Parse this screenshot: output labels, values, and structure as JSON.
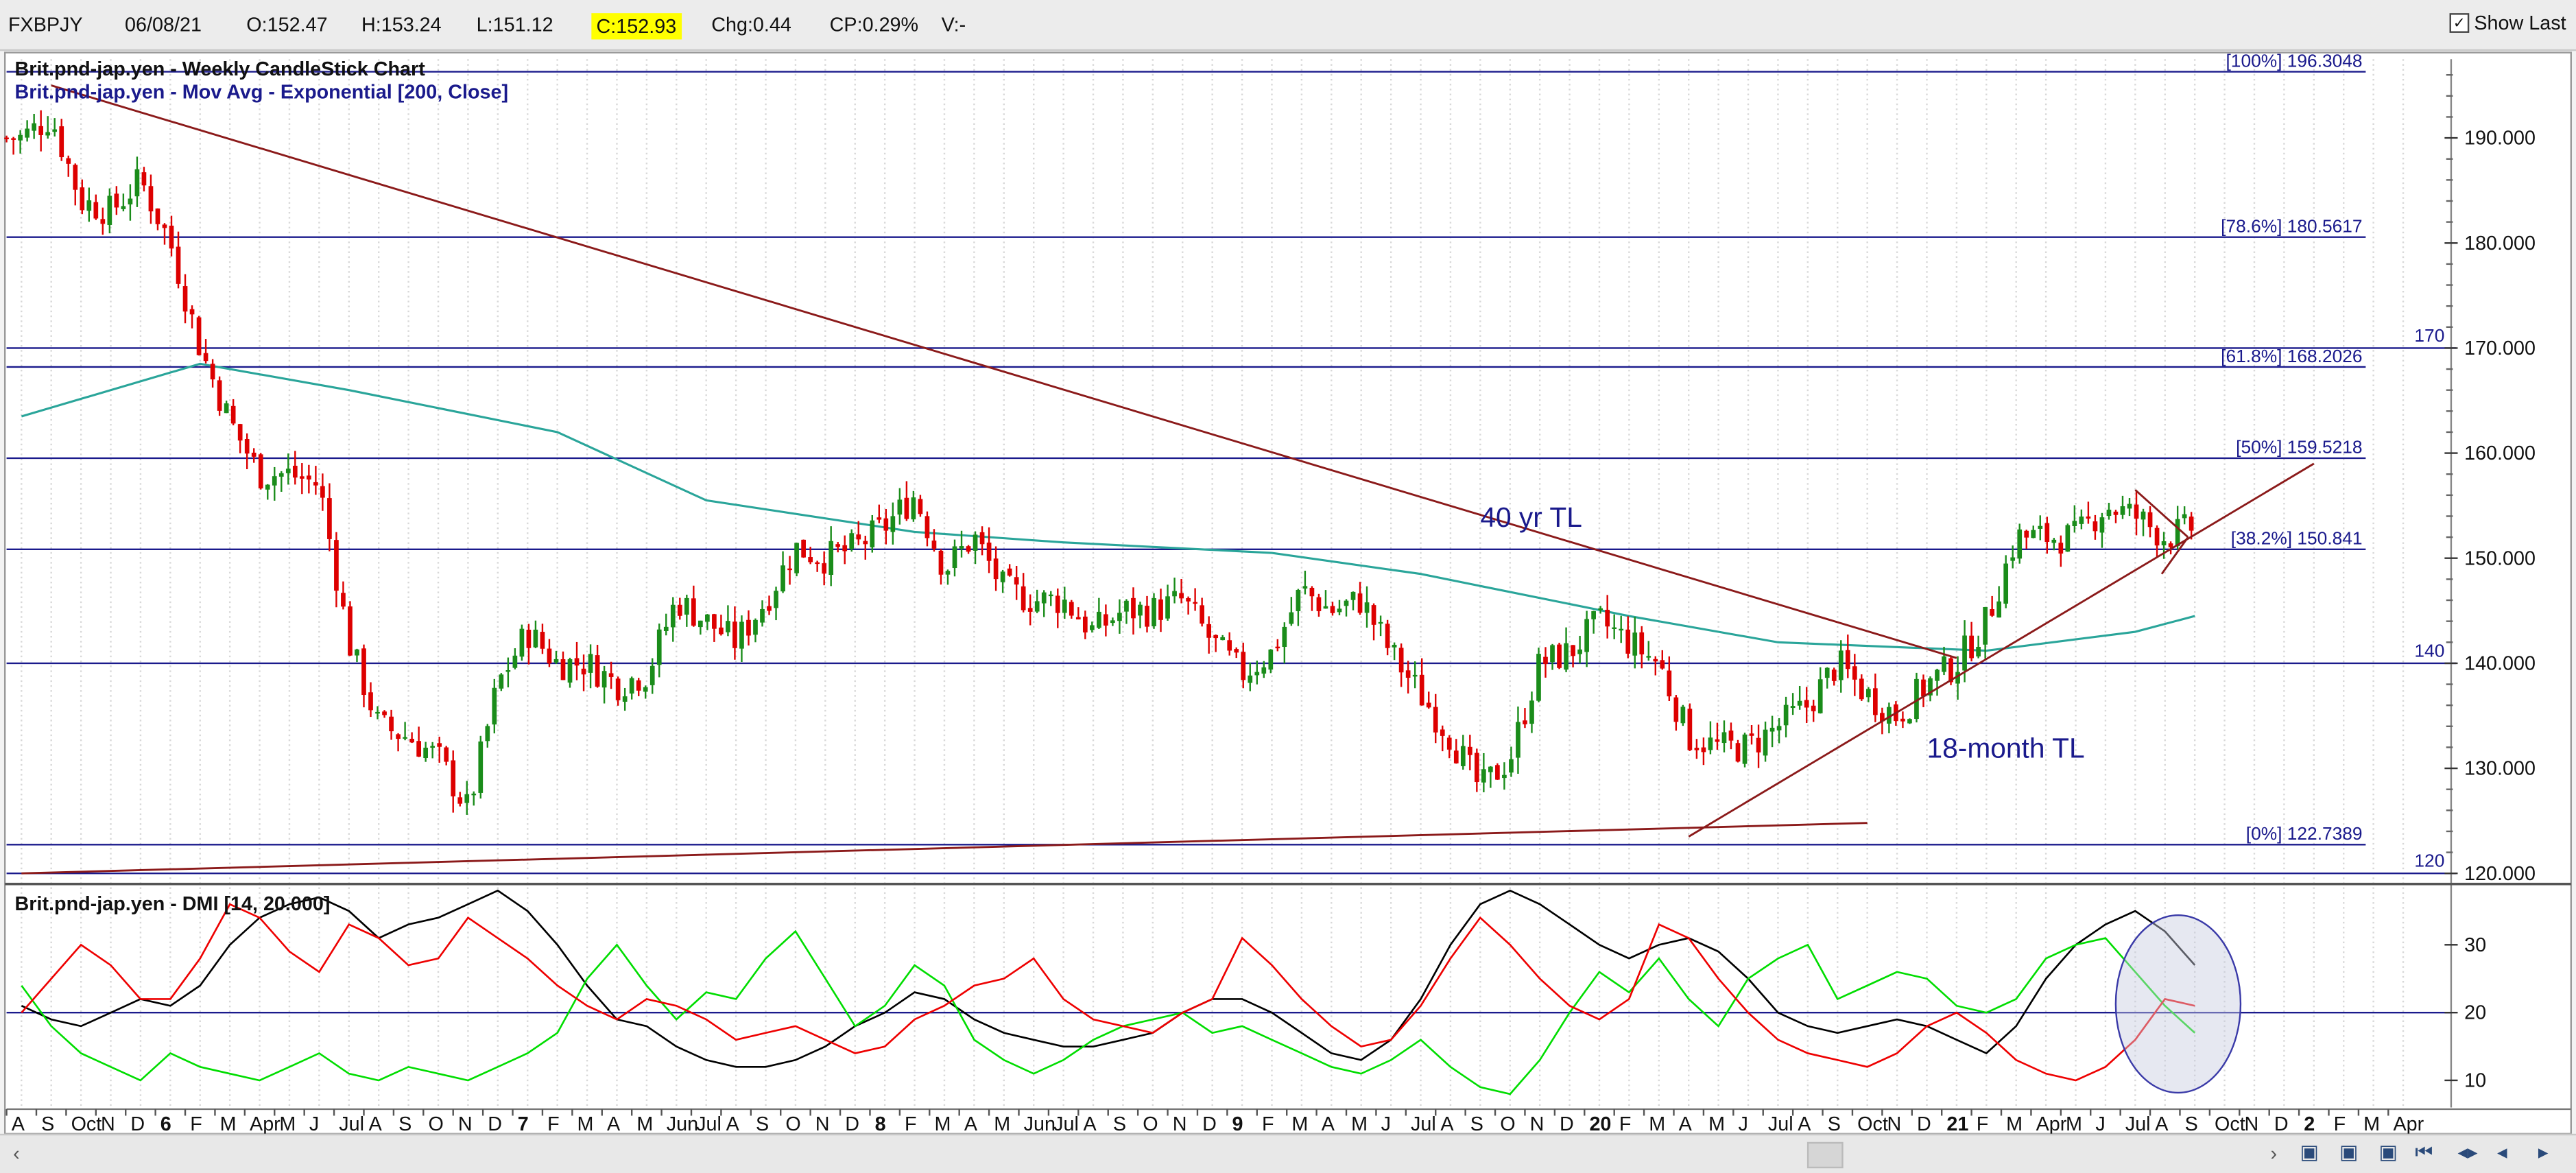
{
  "header": {
    "symbol": "FXBPJY",
    "date": "06/08/21",
    "open": "O:152.47",
    "high": "H:153.24",
    "low": "L:151.12",
    "close": "C:152.93",
    "change": "Chg:0.44",
    "change_pct": "CP:0.29%",
    "volume": "V:-",
    "show_last": "Show Last"
  },
  "colors": {
    "candle_up": "#1a8c1a",
    "candle_down": "#dd0000",
    "ema": "#2aa59a",
    "trendline": "#8b1a1a",
    "fib": "#1a1a8c",
    "adx": "#000000",
    "dip": "#00dd00",
    "dim": "#ee0000",
    "highlight": "#ffff00"
  },
  "chart_data": [
    {
      "type": "candlestick",
      "title": "Brit.pnd-jap.yen - Weekly CandleStick Chart",
      "ylim": [
        119.3,
        197.5
      ],
      "y_ticks": [
        "120.000",
        "130.000",
        "140.000",
        "150.000",
        "160.000",
        "170.000",
        "180.000",
        "190.000"
      ],
      "y_tick_values": [
        120,
        130,
        140,
        150,
        160,
        170,
        180,
        190
      ],
      "x_labels": [
        "A",
        "S",
        "Oct",
        "N",
        "D",
        "6",
        "F",
        "M",
        "Apr",
        "M",
        "J",
        "Jul",
        "A",
        "S",
        "O",
        "N",
        "D",
        "7",
        "F",
        "M",
        "A",
        "M",
        "Jun",
        "Jul",
        "A",
        "S",
        "O",
        "N",
        "D",
        "8",
        "F",
        "M",
        "A",
        "M",
        "Jun",
        "Jul",
        "A",
        "S",
        "O",
        "N",
        "D",
        "9",
        "F",
        "M",
        "A",
        "M",
        "J",
        "Jul",
        "A",
        "S",
        "O",
        "N",
        "D",
        "20",
        "F",
        "M",
        "A",
        "M",
        "J",
        "Jul",
        "A",
        "S",
        "Oct",
        "N",
        "D",
        "21",
        "F",
        "M",
        "Apr",
        "M",
        "J",
        "Jul",
        "A",
        "S",
        "Oct",
        "N",
        "D",
        "2",
        "F",
        "M",
        "Apr"
      ],
      "bold_x_labels": [
        "6",
        "7",
        "8",
        "9",
        "20",
        "21",
        "2"
      ],
      "ema_legend": "Brit.pnd-jap.yen - Mov Avg - Exponential [200, Close]",
      "fib_levels": [
        {
          "label": "[100%] 196.3048",
          "value": 196.3048
        },
        {
          "label": "[78.6%] 180.5617",
          "value": 180.5617
        },
        {
          "label": "[61.8%] 168.2026",
          "value": 168.2026
        },
        {
          "label": "[50%] 159.5218",
          "value": 159.5218
        },
        {
          "label": "[38.2%] 150.841",
          "value": 150.841
        },
        {
          "label": "[0%] 122.7389",
          "value": 122.7389
        }
      ],
      "horizontal_lines": [
        {
          "label": "170",
          "value": 170
        },
        {
          "label": "140",
          "value": 140
        },
        {
          "label": "120",
          "value": 120
        }
      ],
      "annotations": [
        {
          "text": "40 yr TL",
          "date": "2019-08",
          "y": 153
        },
        {
          "text": "18-month TL",
          "date": "2020-11",
          "y": 131
        }
      ],
      "trendlines": [
        {
          "name": "40 yr TL",
          "start": [
            "2015-08",
            195.0
          ],
          "end": [
            "2020-12",
            140.5
          ]
        },
        {
          "name": "18-month TL",
          "start": [
            "2020-03",
            123.5
          ],
          "end": [
            "2021-12",
            159.0
          ]
        },
        {
          "name": "pattern top",
          "start": [
            "2021-06",
            156.5
          ],
          "end": [
            "2021-07",
            152.0
          ]
        },
        {
          "name": "pattern bottom",
          "start": [
            "2021-07",
            148.5
          ],
          "end": [
            "2021-07",
            152.0
          ]
        },
        {
          "name": "base line",
          "start": [
            "2015-07",
            120.0
          ],
          "end": [
            "2020-09",
            124.8
          ]
        }
      ],
      "close_path": {
        "dates": [
          "2015-07",
          "2015-08",
          "2015-09",
          "2015-10",
          "2015-11",
          "2015-12",
          "2016-01",
          "2016-02",
          "2016-03",
          "2016-04",
          "2016-05",
          "2016-06",
          "2016-07",
          "2016-08",
          "2016-09",
          "2016-10",
          "2016-11",
          "2016-12",
          "2017-01",
          "2017-02",
          "2017-03",
          "2017-04",
          "2017-05",
          "2017-06",
          "2017-07",
          "2017-08",
          "2017-09",
          "2017-10",
          "2017-11",
          "2017-12",
          "2018-01",
          "2018-02",
          "2018-03",
          "2018-04",
          "2018-05",
          "2018-06",
          "2018-07",
          "2018-08",
          "2018-09",
          "2018-10",
          "2018-11",
          "2018-12",
          "2019-01",
          "2019-02",
          "2019-03",
          "2019-04",
          "2019-05",
          "2019-06",
          "2019-07",
          "2019-08",
          "2019-09",
          "2019-10",
          "2019-11",
          "2019-12",
          "2020-01",
          "2020-02",
          "2020-03",
          "2020-04",
          "2020-05",
          "2020-06",
          "2020-07",
          "2020-08",
          "2020-09",
          "2020-10",
          "2020-11",
          "2020-12",
          "2021-01",
          "2021-02",
          "2021-03",
          "2021-04",
          "2021-05",
          "2021-06",
          "2021-07",
          "2021-08"
        ],
        "close": [
          190,
          192,
          184,
          183,
          186,
          180,
          170,
          163,
          158,
          158,
          157,
          142,
          134,
          133,
          131,
          126,
          138,
          143,
          140,
          140,
          138,
          139,
          146,
          144,
          142,
          146,
          151,
          150,
          151,
          153,
          156,
          149,
          152,
          147,
          146,
          146,
          143,
          145,
          145,
          146,
          142,
          139,
          141,
          147,
          145,
          146,
          141,
          137,
          133,
          128,
          131,
          140,
          141,
          144,
          142,
          140,
          133,
          132,
          132,
          134,
          136,
          140,
          137,
          135,
          138,
          140,
          144,
          152,
          152,
          152,
          155,
          154,
          152,
          153
        ]
      },
      "ema": {
        "dates": [
          "2015-07",
          "2016-01",
          "2016-06",
          "2017-01",
          "2017-06",
          "2018-01",
          "2018-06",
          "2019-01",
          "2019-06",
          "2020-01",
          "2020-06",
          "2021-01",
          "2021-06",
          "2021-08"
        ],
        "values": [
          163.5,
          168.5,
          166,
          162,
          155.5,
          152.5,
          151.5,
          150.5,
          148.5,
          144.5,
          142,
          141.2,
          143,
          144.5
        ]
      }
    },
    {
      "type": "line",
      "title": "Brit.pnd-jap.yen - DMI [14, 20.000]",
      "ylim": [
        6,
        38
      ],
      "y_ticks": [
        "10",
        "20",
        "30"
      ],
      "y_tick_values": [
        10,
        20,
        30
      ],
      "reference_line": 20,
      "dates": [
        "2015-07",
        "2015-08",
        "2015-09",
        "2015-10",
        "2015-11",
        "2015-12",
        "2016-01",
        "2016-02",
        "2016-03",
        "2016-04",
        "2016-05",
        "2016-06",
        "2016-07",
        "2016-08",
        "2016-09",
        "2016-10",
        "2016-11",
        "2016-12",
        "2017-01",
        "2017-02",
        "2017-03",
        "2017-04",
        "2017-05",
        "2017-06",
        "2017-07",
        "2017-08",
        "2017-09",
        "2017-10",
        "2017-11",
        "2017-12",
        "2018-01",
        "2018-02",
        "2018-03",
        "2018-04",
        "2018-05",
        "2018-06",
        "2018-07",
        "2018-08",
        "2018-09",
        "2018-10",
        "2018-11",
        "2018-12",
        "2019-01",
        "2019-02",
        "2019-03",
        "2019-04",
        "2019-05",
        "2019-06",
        "2019-07",
        "2019-08",
        "2019-09",
        "2019-10",
        "2019-11",
        "2019-12",
        "2020-01",
        "2020-02",
        "2020-03",
        "2020-04",
        "2020-05",
        "2020-06",
        "2020-07",
        "2020-08",
        "2020-09",
        "2020-10",
        "2020-11",
        "2020-12",
        "2021-01",
        "2021-02",
        "2021-03",
        "2021-04",
        "2021-05",
        "2021-06",
        "2021-07",
        "2021-08"
      ],
      "series": [
        {
          "name": "ADX",
          "color": "#000000",
          "values": [
            21,
            19,
            18,
            20,
            22,
            21,
            24,
            30,
            34,
            36,
            37,
            35,
            31,
            33,
            34,
            36,
            38,
            35,
            30,
            24,
            19,
            18,
            15,
            13,
            12,
            12,
            13,
            15,
            18,
            20,
            23,
            22,
            19,
            17,
            16,
            15,
            15,
            16,
            17,
            20,
            22,
            22,
            20,
            17,
            14,
            13,
            16,
            22,
            30,
            36,
            38,
            36,
            33,
            30,
            28,
            30,
            31,
            29,
            25,
            20,
            18,
            17,
            18,
            19,
            18,
            16,
            14,
            18,
            25,
            30,
            33,
            35,
            32,
            27
          ]
        },
        {
          "name": "+DI",
          "color": "#00dd00",
          "values": [
            24,
            18,
            14,
            12,
            10,
            14,
            12,
            11,
            10,
            12,
            14,
            11,
            10,
            12,
            11,
            10,
            12,
            14,
            17,
            25,
            30,
            24,
            19,
            23,
            22,
            28,
            32,
            25,
            18,
            21,
            27,
            24,
            16,
            13,
            11,
            13,
            16,
            18,
            19,
            20,
            17,
            18,
            16,
            14,
            12,
            11,
            13,
            16,
            12,
            9,
            8,
            13,
            20,
            26,
            23,
            28,
            22,
            18,
            25,
            28,
            30,
            22,
            24,
            26,
            25,
            21,
            20,
            22,
            28,
            30,
            31,
            26,
            21,
            17
          ]
        },
        {
          "name": "-DI",
          "color": "#ee0000",
          "values": [
            20,
            25,
            30,
            27,
            22,
            22,
            28,
            36,
            34,
            29,
            26,
            33,
            31,
            27,
            28,
            34,
            31,
            28,
            24,
            21,
            19,
            22,
            21,
            19,
            16,
            17,
            18,
            16,
            14,
            15,
            19,
            21,
            24,
            25,
            28,
            22,
            19,
            18,
            17,
            20,
            22,
            31,
            27,
            22,
            18,
            15,
            16,
            21,
            28,
            34,
            30,
            25,
            21,
            19,
            22,
            33,
            31,
            25,
            20,
            16,
            14,
            13,
            12,
            14,
            18,
            20,
            17,
            13,
            11,
            10,
            12,
            16,
            22,
            21
          ]
        }
      ],
      "highlight": "ellipse over Jun–Aug 2021"
    }
  ]
}
